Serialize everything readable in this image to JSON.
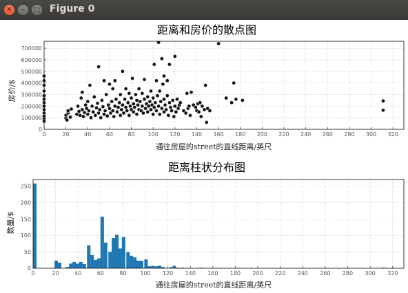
{
  "window": {
    "title": "Figure 0",
    "close_glyph": "✕",
    "min_glyph": "–",
    "max_glyph": "□"
  },
  "chart_data": [
    {
      "type": "scatter",
      "title": "距离和房价的散点图",
      "xlabel": "通往房屋的street的直线距离/英尺",
      "ylabel": "房价/$",
      "xlim": [
        0,
        330
      ],
      "ylim": [
        0,
        760000
      ],
      "xticks": [
        0,
        20,
        40,
        60,
        80,
        100,
        120,
        140,
        160,
        180,
        200,
        220,
        240,
        260,
        280,
        300,
        320
      ],
      "yticks": [
        0,
        100000,
        200000,
        300000,
        400000,
        500000,
        600000,
        700000
      ],
      "grid": true,
      "marker_color": "#111111",
      "edge_color": "#dddddd",
      "points": [
        [
          0,
          460000
        ],
        [
          0,
          420000
        ],
        [
          0,
          380000
        ],
        [
          0,
          330000
        ],
        [
          0,
          290000
        ],
        [
          0,
          260000
        ],
        [
          0,
          230000
        ],
        [
          0,
          200000
        ],
        [
          0,
          170000
        ],
        [
          0,
          140000
        ],
        [
          0,
          115000
        ],
        [
          0,
          90000
        ],
        [
          0,
          70000
        ],
        [
          20,
          120000
        ],
        [
          20,
          95000
        ],
        [
          21,
          80000
        ],
        [
          22,
          140000
        ],
        [
          22,
          160000
        ],
        [
          24,
          105000
        ],
        [
          25,
          175000
        ],
        [
          30,
          130000
        ],
        [
          31,
          200000
        ],
        [
          32,
          155000
        ],
        [
          33,
          120000
        ],
        [
          34,
          270000
        ],
        [
          35,
          320000
        ],
        [
          35,
          170000
        ],
        [
          36,
          110000
        ],
        [
          37,
          145000
        ],
        [
          38,
          210000
        ],
        [
          39,
          180000
        ],
        [
          40,
          130000
        ],
        [
          40,
          240000
        ],
        [
          41,
          160000
        ],
        [
          42,
          380000
        ],
        [
          43,
          100000
        ],
        [
          44,
          200000
        ],
        [
          45,
          150000
        ],
        [
          46,
          280000
        ],
        [
          47,
          120000
        ],
        [
          48,
          185000
        ],
        [
          49,
          225000
        ],
        [
          50,
          540000
        ],
        [
          50,
          140000
        ],
        [
          51,
          170000
        ],
        [
          52,
          100000
        ],
        [
          53,
          250000
        ],
        [
          54,
          195000
        ],
        [
          55,
          420000
        ],
        [
          55,
          130000
        ],
        [
          56,
          160000
        ],
        [
          57,
          300000
        ],
        [
          58,
          115000
        ],
        [
          59,
          210000
        ],
        [
          60,
          180000
        ],
        [
          60,
          390000
        ],
        [
          61,
          140000
        ],
        [
          62,
          240000
        ],
        [
          63,
          160000
        ],
        [
          63,
          350000
        ],
        [
          64,
          110000
        ],
        [
          65,
          200000
        ],
        [
          65,
          420000
        ],
        [
          66,
          260000
        ],
        [
          67,
          150000
        ],
        [
          68,
          190000
        ],
        [
          69,
          230000
        ],
        [
          70,
          120000
        ],
        [
          70,
          300000
        ],
        [
          71,
          170000
        ],
        [
          72,
          210000
        ],
        [
          72,
          500000
        ],
        [
          73,
          140000
        ],
        [
          74,
          260000
        ],
        [
          75,
          190000
        ],
        [
          75,
          350000
        ],
        [
          76,
          160000
        ],
        [
          77,
          230000
        ],
        [
          78,
          120000
        ],
        [
          78,
          310000
        ],
        [
          79,
          200000
        ],
        [
          80,
          170000
        ],
        [
          80,
          270000
        ],
        [
          81,
          440000
        ],
        [
          82,
          150000
        ],
        [
          82,
          220000
        ],
        [
          83,
          190000
        ],
        [
          84,
          300000
        ],
        [
          85,
          130000
        ],
        [
          85,
          250000
        ],
        [
          86,
          210000
        ],
        [
          87,
          170000
        ],
        [
          87,
          350000
        ],
        [
          88,
          240000
        ],
        [
          89,
          160000
        ],
        [
          90,
          200000
        ],
        [
          90,
          310000
        ],
        [
          91,
          140000
        ],
        [
          92,
          260000
        ],
        [
          92,
          430000
        ],
        [
          93,
          180000
        ],
        [
          94,
          220000
        ],
        [
          95,
          150000
        ],
        [
          95,
          280000
        ],
        [
          96,
          200000
        ],
        [
          97,
          240000
        ],
        [
          98,
          170000
        ],
        [
          98,
          330000
        ],
        [
          99,
          210000
        ],
        [
          100,
          130000
        ],
        [
          100,
          270000
        ],
        [
          101,
          190000
        ],
        [
          101,
          560000
        ],
        [
          102,
          230000
        ],
        [
          103,
          160000
        ],
        [
          103,
          420000
        ],
        [
          104,
          290000
        ],
        [
          105,
          750000
        ],
        [
          105,
          200000
        ],
        [
          106,
          130000
        ],
        [
          106,
          330000
        ],
        [
          107,
          240000
        ],
        [
          108,
          180000
        ],
        [
          108,
          610000
        ],
        [
          109,
          390000
        ],
        [
          110,
          150000
        ],
        [
          110,
          260000
        ],
        [
          110,
          460000
        ],
        [
          111,
          210000
        ],
        [
          112,
          170000
        ],
        [
          113,
          290000
        ],
        [
          113,
          420000
        ],
        [
          114,
          120000
        ],
        [
          115,
          230000
        ],
        [
          115,
          560000
        ],
        [
          116,
          190000
        ],
        [
          117,
          160000
        ],
        [
          118,
          250000
        ],
        [
          119,
          110000
        ],
        [
          120,
          200000
        ],
        [
          120,
          630000
        ],
        [
          121,
          150000
        ],
        [
          122,
          260000
        ],
        [
          123,
          180000
        ],
        [
          124,
          210000
        ],
        [
          125,
          230000
        ],
        [
          128,
          160000
        ],
        [
          130,
          140000
        ],
        [
          131,
          310000
        ],
        [
          132,
          180000
        ],
        [
          133,
          200000
        ],
        [
          134,
          120000
        ],
        [
          135,
          320000
        ],
        [
          137,
          210000
        ],
        [
          139,
          190000
        ],
        [
          140,
          160000
        ],
        [
          141,
          220000
        ],
        [
          142,
          150000
        ],
        [
          143,
          230000
        ],
        [
          144,
          110000
        ],
        [
          145,
          200000
        ],
        [
          147,
          170000
        ],
        [
          148,
          380000
        ],
        [
          149,
          60000
        ],
        [
          150,
          180000
        ],
        [
          152,
          160000
        ],
        [
          160,
          740000
        ],
        [
          167,
          270000
        ],
        [
          172,
          230000
        ],
        [
          174,
          400000
        ],
        [
          176,
          260000
        ],
        [
          182,
          250000
        ],
        [
          311,
          245000
        ],
        [
          311,
          165000
        ]
      ]
    },
    {
      "type": "bar",
      "title": "距离柱状分布图",
      "xlabel": "通往房屋的street的直线距离/英尺",
      "ylabel": "数量/$",
      "xlim": [
        0,
        330
      ],
      "ylim": [
        0,
        270
      ],
      "xticks": [
        0,
        20,
        40,
        60,
        80,
        100,
        120,
        140,
        160,
        180,
        200,
        220,
        240,
        260,
        280,
        300,
        320
      ],
      "yticks": [
        0,
        50,
        100,
        150,
        200,
        250
      ],
      "grid": true,
      "bar_color": "#1f77b4",
      "bin_width": 3.2,
      "bin_starts": [
        0,
        19,
        22,
        29,
        32,
        35,
        38,
        41,
        44,
        48,
        51,
        54,
        57,
        60,
        63,
        67,
        70,
        73,
        76,
        79,
        83,
        86,
        89,
        92,
        95,
        99,
        102,
        105,
        108,
        111,
        114,
        121,
        124,
        127,
        131,
        135,
        140,
        144,
        148,
        152,
        158,
        166,
        175,
        183,
        193,
        210,
        230,
        255,
        270,
        290,
        300,
        310
      ],
      "counts": [
        258,
        23,
        17,
        4,
        14,
        19,
        14,
        19,
        13,
        70,
        40,
        25,
        30,
        157,
        78,
        50,
        92,
        102,
        60,
        95,
        49,
        38,
        33,
        23,
        23,
        27,
        6,
        7,
        6,
        8,
        4,
        3,
        7,
        2,
        2,
        1,
        1,
        1,
        2,
        1,
        1,
        1,
        1,
        1,
        1,
        1,
        1,
        1,
        1,
        1,
        1,
        2
      ]
    }
  ]
}
